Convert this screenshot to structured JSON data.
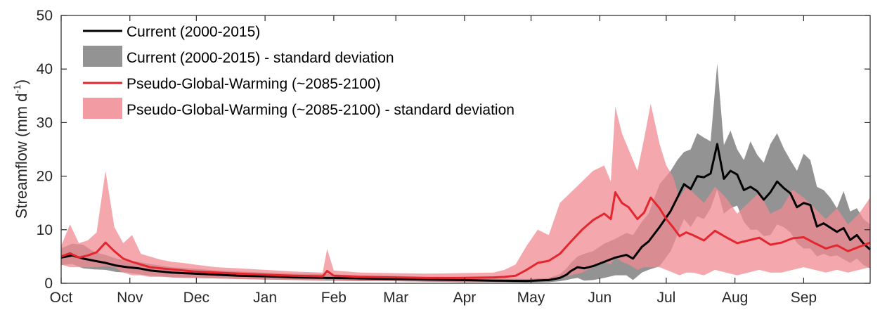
{
  "chart_data": {
    "type": "area",
    "xlabel": "",
    "ylabel": "Streamflow (mm d",
    "ylabel_superscript": "-1",
    "ylabel_close": ")",
    "ylim": [
      0,
      50
    ],
    "yticks": [
      0,
      10,
      20,
      30,
      40,
      50
    ],
    "x_range_days": [
      0,
      365
    ],
    "months": [
      "Oct",
      "Nov",
      "Dec",
      "Jan",
      "Feb",
      "Mar",
      "Apr",
      "May",
      "Jun",
      "Jul",
      "Aug",
      "Sep"
    ],
    "month_start_day": [
      0,
      31,
      61,
      92,
      123,
      151,
      182,
      212,
      243,
      273,
      304,
      335
    ],
    "grid": false,
    "legend_position": "top-left",
    "colors": {
      "current_line": "#000000",
      "current_band": "#808080",
      "pgw_line": "#e4262f",
      "pgw_band": "#f08a92"
    },
    "legend": [
      {
        "label": "Current (2000-2015)",
        "kind": "line",
        "color": "#000000"
      },
      {
        "label": "Current (2000-2015) - standard deviation",
        "kind": "band",
        "color": "#808080"
      },
      {
        "label": "Pseudo-Global-Warming (~2085-2100)",
        "kind": "line",
        "color": "#e4262f"
      },
      {
        "label": "Pseudo-Global-Warming (~2085-2100) - standard deviation",
        "kind": "band",
        "color": "#f08a92"
      }
    ],
    "series": [
      {
        "name": "Current (2000-2015)",
        "x": [
          0,
          5,
          10,
          15,
          20,
          25,
          30,
          35,
          40,
          45,
          50,
          60,
          70,
          80,
          92,
          105,
          120,
          135,
          150,
          165,
          180,
          195,
          210,
          220,
          225,
          228,
          230,
          233,
          236,
          240,
          245,
          250,
          255,
          258,
          262,
          265,
          270,
          275,
          278,
          281,
          284,
          287,
          290,
          293,
          296,
          299,
          302,
          305,
          308,
          311,
          314,
          317,
          320,
          323,
          326,
          329,
          332,
          335,
          338,
          341,
          344,
          347,
          350,
          353,
          356,
          359,
          362,
          365
        ],
        "y": [
          4.8,
          5.2,
          4.6,
          4.2,
          3.8,
          3.3,
          3.0,
          2.8,
          2.4,
          2.2,
          2.0,
          1.8,
          1.6,
          1.4,
          1.3,
          1.1,
          1.0,
          0.9,
          0.8,
          0.7,
          0.6,
          0.5,
          0.45,
          0.6,
          1.0,
          1.6,
          2.3,
          3.0,
          2.8,
          3.2,
          4.0,
          4.8,
          5.3,
          4.6,
          6.8,
          7.8,
          10.5,
          13.5,
          16.0,
          18.5,
          17.6,
          20.0,
          19.8,
          20.5,
          26.0,
          19.5,
          21.0,
          20.3,
          17.4,
          18.0,
          17.2,
          15.6,
          17.0,
          19.0,
          17.8,
          16.8,
          14.2,
          15.0,
          14.6,
          10.6,
          11.2,
          10.4,
          9.6,
          10.3,
          8.1,
          9.0,
          7.4,
          6.3
        ]
      },
      {
        "name": "Current (2000-2015) - standard deviation",
        "x": [
          0,
          5,
          10,
          15,
          20,
          25,
          30,
          35,
          40,
          45,
          50,
          60,
          70,
          80,
          92,
          105,
          120,
          135,
          150,
          165,
          180,
          195,
          210,
          220,
          225,
          228,
          230,
          233,
          236,
          240,
          245,
          250,
          255,
          258,
          262,
          265,
          270,
          275,
          278,
          281,
          284,
          287,
          290,
          293,
          296,
          299,
          302,
          305,
          308,
          311,
          314,
          317,
          320,
          323,
          326,
          329,
          332,
          335,
          338,
          341,
          344,
          347,
          350,
          353,
          356,
          359,
          362,
          365
        ],
        "upper": [
          6.5,
          7.4,
          7.2,
          5.8,
          5.3,
          4.6,
          4.2,
          4.0,
          3.6,
          3.3,
          3.0,
          2.7,
          2.4,
          2.2,
          2.0,
          1.8,
          1.7,
          1.5,
          1.4,
          1.2,
          1.1,
          0.9,
          0.8,
          1.0,
          1.7,
          2.8,
          3.8,
          5.0,
          5.5,
          6.0,
          7.4,
          8.3,
          9.4,
          9.0,
          11.5,
          13.0,
          18.5,
          21.0,
          23.0,
          24.5,
          25.0,
          28.0,
          27.2,
          26.5,
          41.0,
          25.8,
          28.5,
          25.0,
          23.0,
          26.5,
          24.0,
          22.5,
          26.0,
          28.0,
          25.2,
          23.0,
          21.0,
          24.2,
          23.0,
          18.0,
          17.4,
          16.0,
          14.0,
          17.2,
          13.4,
          14.0,
          12.0,
          11.0
        ],
        "lower": [
          3.4,
          3.6,
          2.8,
          2.6,
          2.5,
          2.1,
          2.0,
          1.7,
          1.4,
          1.3,
          1.1,
          1.0,
          0.9,
          0.8,
          0.7,
          0.6,
          0.5,
          0.4,
          0.4,
          0.3,
          0.2,
          0.2,
          0.1,
          0.2,
          0.4,
          0.6,
          0.8,
          1.0,
          0.5,
          0.6,
          1.0,
          1.5,
          1.5,
          0.6,
          2.0,
          2.5,
          3.2,
          6.0,
          9.0,
          12.0,
          10.5,
          12.5,
          12.0,
          14.0,
          17.5,
          13.0,
          14.0,
          14.5,
          11.5,
          10.0,
          10.0,
          8.8,
          9.0,
          11.0,
          10.5,
          9.5,
          7.5,
          6.5,
          6.5,
          5.0,
          5.5,
          5.0,
          5.2,
          4.5,
          3.8,
          4.6,
          3.4,
          2.8
        ]
      },
      {
        "name": "Pseudo-Global-Warming (~2085-2100)",
        "x": [
          0,
          4,
          8,
          12,
          16,
          20,
          24,
          28,
          32,
          36,
          40,
          45,
          50,
          55,
          60,
          70,
          80,
          92,
          105,
          118,
          120,
          123,
          135,
          150,
          165,
          180,
          195,
          200,
          205,
          210,
          215,
          220,
          225,
          230,
          235,
          240,
          245,
          248,
          250,
          253,
          256,
          260,
          263,
          266,
          270,
          273,
          276,
          279,
          282,
          285,
          290,
          295,
          300,
          305,
          310,
          315,
          320,
          325,
          330,
          335,
          340,
          345,
          350,
          355,
          360,
          365
        ],
        "y": [
          5.0,
          5.6,
          4.8,
          5.2,
          5.8,
          7.6,
          6.0,
          4.6,
          4.0,
          3.5,
          3.0,
          2.8,
          2.6,
          2.4,
          2.2,
          2.0,
          1.8,
          1.6,
          1.4,
          1.3,
          2.3,
          1.4,
          1.2,
          1.1,
          1.0,
          1.0,
          1.1,
          1.2,
          1.4,
          2.5,
          3.8,
          4.2,
          5.5,
          7.8,
          10.0,
          11.8,
          13.0,
          12.0,
          17.0,
          15.0,
          14.2,
          12.0,
          13.2,
          16.0,
          14.0,
          12.0,
          10.5,
          8.8,
          9.5,
          9.0,
          8.0,
          9.8,
          8.6,
          7.5,
          8.0,
          8.5,
          7.2,
          7.6,
          8.4,
          8.6,
          7.5,
          6.5,
          7.1,
          6.0,
          6.8,
          7.6
        ]
      },
      {
        "name": "Pseudo-Global-Warming (~2085-2100) - standard deviation",
        "x": [
          0,
          4,
          8,
          12,
          16,
          20,
          24,
          28,
          32,
          36,
          40,
          45,
          50,
          55,
          60,
          70,
          80,
          92,
          105,
          118,
          120,
          123,
          135,
          150,
          165,
          180,
          195,
          200,
          205,
          210,
          215,
          220,
          225,
          230,
          235,
          240,
          245,
          248,
          250,
          253,
          256,
          260,
          263,
          266,
          270,
          273,
          276,
          279,
          282,
          285,
          290,
          295,
          300,
          305,
          310,
          315,
          320,
          325,
          330,
          335,
          340,
          345,
          350,
          355,
          360,
          365
        ],
        "upper": [
          7.0,
          11.0,
          7.5,
          8.0,
          9.5,
          21.0,
          10.5,
          7.5,
          9.0,
          5.5,
          5.0,
          4.4,
          4.0,
          3.8,
          3.5,
          3.0,
          2.8,
          2.5,
          2.2,
          2.0,
          6.4,
          2.4,
          2.0,
          1.9,
          1.8,
          1.9,
          2.0,
          2.5,
          3.5,
          7.0,
          10.0,
          9.0,
          15.0,
          17.0,
          19.0,
          21.0,
          22.0,
          19.0,
          33.0,
          28.0,
          25.0,
          21.0,
          27.0,
          33.5,
          26.0,
          22.0,
          20.0,
          16.0,
          18.0,
          17.0,
          15.0,
          18.0,
          16.0,
          13.0,
          15.0,
          17.0,
          13.0,
          14.0,
          17.5,
          16.0,
          14.0,
          12.0,
          14.0,
          11.0,
          13.0,
          16.0
        ],
        "lower": [
          3.5,
          3.0,
          3.0,
          3.0,
          3.0,
          3.2,
          3.0,
          2.0,
          1.5,
          1.5,
          1.2,
          1.2,
          1.1,
          1.0,
          1.0,
          0.9,
          0.8,
          0.7,
          0.6,
          0.5,
          0.8,
          0.5,
          0.5,
          0.4,
          0.3,
          0.3,
          0.3,
          0.2,
          0.3,
          0.4,
          0.8,
          0.8,
          1.0,
          1.5,
          2.0,
          3.0,
          4.0,
          3.5,
          5.0,
          4.0,
          3.5,
          2.5,
          3.0,
          3.0,
          3.0,
          2.5,
          2.0,
          1.5,
          2.0,
          2.0,
          1.5,
          2.5,
          2.0,
          1.5,
          2.0,
          2.5,
          2.0,
          2.0,
          2.5,
          3.0,
          2.5,
          2.0,
          2.5,
          2.0,
          2.5,
          3.0
        ]
      }
    ]
  }
}
